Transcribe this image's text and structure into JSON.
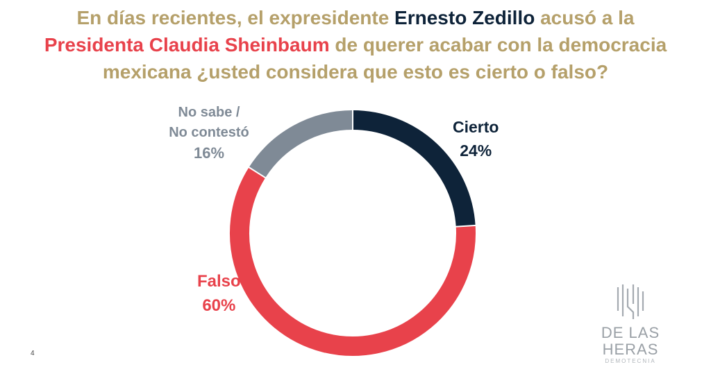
{
  "title": {
    "part1": "En días recientes, el expresidente ",
    "name1": "Ernesto Zedillo",
    "part2": " acusó a la",
    "name2": "Presidenta Claudia Sheinbaum",
    "part3": " de querer acabar con la democracia",
    "part4": "mexicana ¿usted considera que esto es cierto o falso?"
  },
  "chart_data": {
    "type": "pie",
    "style": "donut",
    "slices": [
      {
        "label": "Cierto",
        "value": 24,
        "display": "24%",
        "color": "#0e2339"
      },
      {
        "label": "Falso",
        "value": 60,
        "display": "60%",
        "color": "#e8424b"
      },
      {
        "label_line1": "No sabe /",
        "label_line2": "No contestó",
        "value": 16,
        "display": "16%",
        "color": "#7f8a96"
      }
    ]
  },
  "logo": {
    "name": "DE LAS HERAS",
    "sub": "DEMOTECNIA"
  },
  "page_number": "4"
}
